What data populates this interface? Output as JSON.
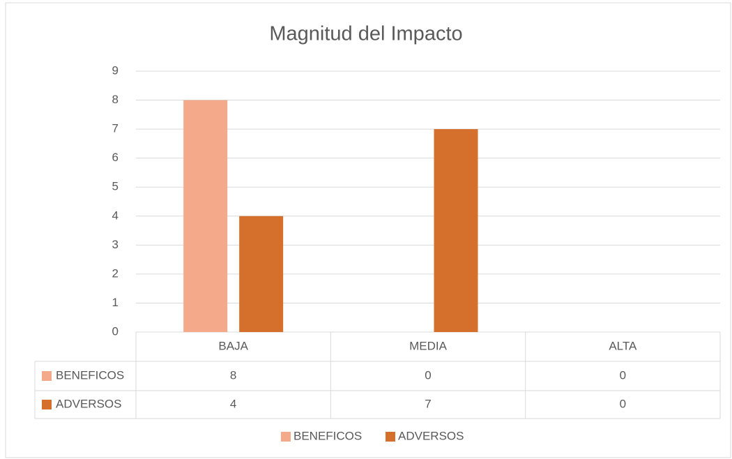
{
  "chart_data": {
    "type": "bar",
    "title": "Magnitud del Impacto",
    "categories": [
      "BAJA",
      "MEDIA",
      "ALTA"
    ],
    "series": [
      {
        "name": "BENEFICOS",
        "color": "#f4a98a",
        "values": [
          8,
          0,
          0
        ]
      },
      {
        "name": "ADVERSOS",
        "color": "#d4702c",
        "values": [
          4,
          7,
          0
        ]
      }
    ],
    "ylim": [
      0,
      9
    ],
    "yticks": [
      0,
      1,
      2,
      3,
      4,
      5,
      6,
      7,
      8,
      9
    ],
    "grid": true,
    "legend": "bottom"
  }
}
